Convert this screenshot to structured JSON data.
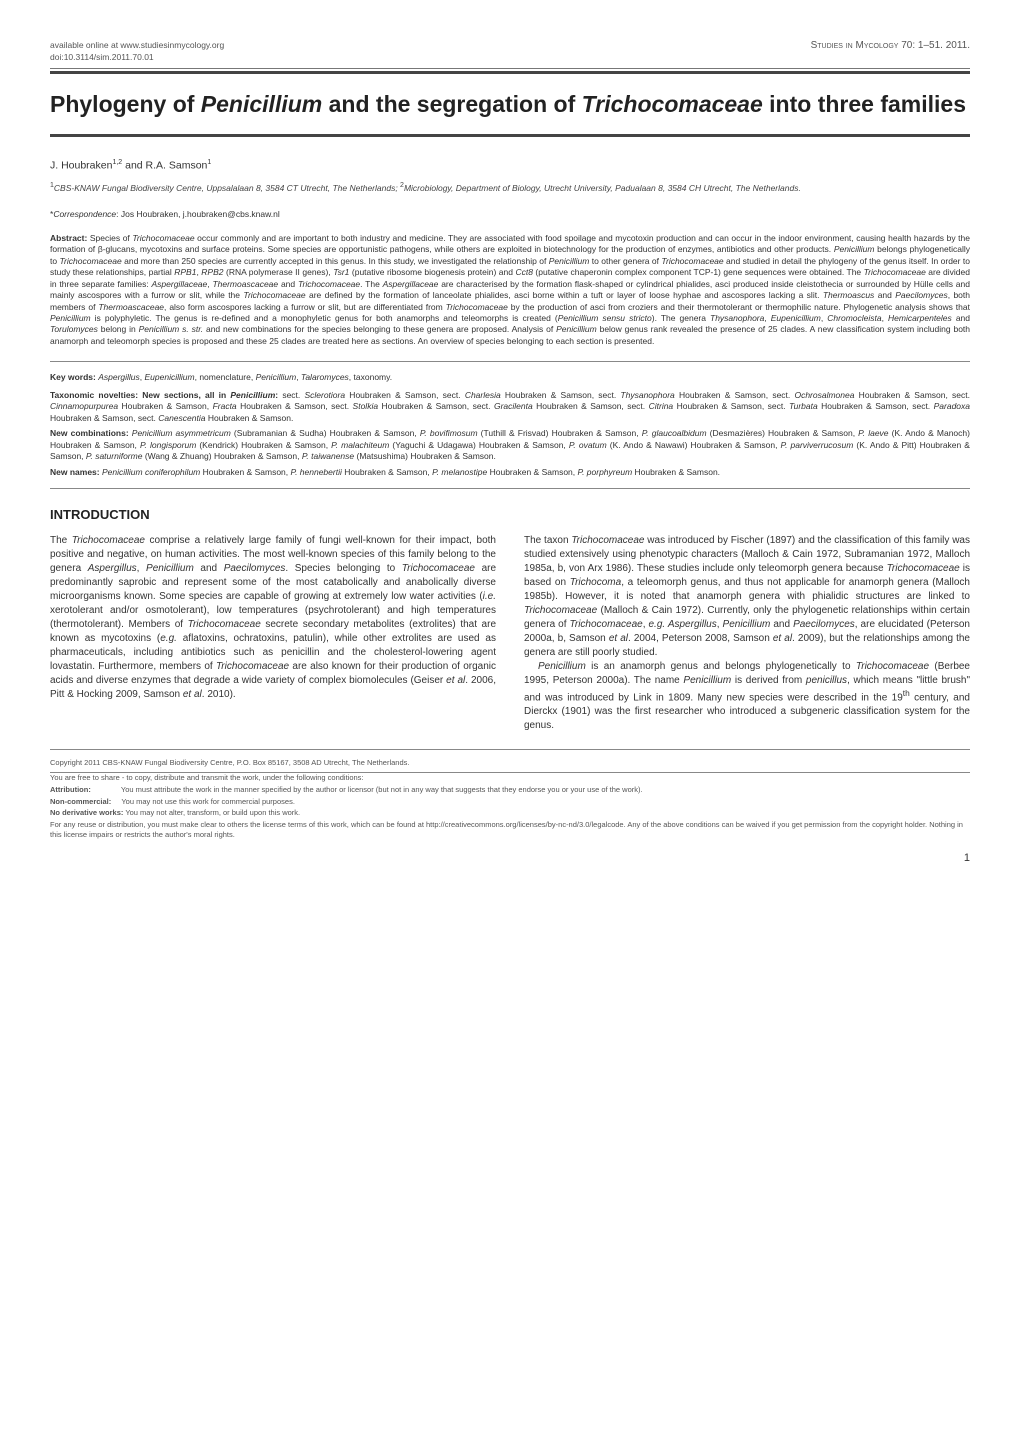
{
  "header": {
    "url": "available online at www.studiesinmycology.org",
    "doi": "doi:10.3114/sim.2011.70.01",
    "journal": "Studies in Mycology 70: 1–51. 2011."
  },
  "title_html": "Phylogeny of <em>Penicillium</em> and the segregation of <em>Trichocomaceae</em> into three families",
  "authors_html": "J. Houbraken<sup>1,2</sup> and R.A. Samson<sup>1</sup>",
  "affiliation_html": "<sup>1</sup>CBS-KNAW Fungal Biodiversity Centre, Uppsalalaan 8, 3584 CT Utrecht, The Netherlands; <sup>2</sup>Microbiology, Department of Biology, Utrecht University, Padualaan 8, 3584 CH Utrecht, The Netherlands.",
  "correspondence_html": "*<em>Correspondence</em>: Jos Houbraken, j.houbraken@cbs.knaw.nl",
  "abstract_label": "Abstract:",
  "abstract_html": "Species of <em>Trichocomaceae</em> occur commonly and are important to both industry and medicine. They are associated with food spoilage and mycotoxin production and can occur in the indoor environment, causing health hazards by the formation of β-glucans, mycotoxins and surface proteins. Some species are opportunistic pathogens, while others are exploited in biotechnology for the production of enzymes, antibiotics and other products. <em>Penicillium</em> belongs phylogenetically to <em>Trichocomaceae</em> and more than 250 species are currently accepted in this genus. In this study, we investigated the relationship of <em>Penicillium</em> to other genera of <em>Trichocomaceae</em> and studied in detail the phylogeny of the genus itself. In order to study these relationships, partial <em>RPB1</em>, <em>RPB2</em> (RNA polymerase II genes), <em>Tsr1</em> (putative ribosome biogenesis protein) and <em>Cct8</em> (putative chaperonin complex component TCP-1) gene sequences were obtained. The <em>Trichocomaceae</em> are divided in three separate families: <em>Aspergillaceae</em>, <em>Thermoascaceae</em> and <em>Trichocomaceae</em>. The <em>Aspergillaceae</em> are characterised by the formation flask-shaped or cylindrical phialides, asci produced inside cleistothecia or surrounded by Hülle cells and mainly ascospores with a furrow or slit, while the <em>Trichocomaceae</em> are defined by the formation of lanceolate phialides, asci borne within a tuft or layer of loose hyphae and ascospores lacking a slit. <em>Thermoascus</em> and <em>Paecilomyces</em>, both members of <em>Thermoascaceae</em>, also form ascospores lacking a furrow or slit, but are differentiated from <em>Trichocomaceae</em> by the production of asci from croziers and their thermotolerant or thermophilic nature. Phylogenetic analysis shows that <em>Penicillium</em> is polyphyletic. The genus is re-defined and a monophyletic genus for both anamorphs and teleomorphs is created (<em>Penicillium sensu stricto</em>). The genera <em>Thysanophora</em>, <em>Eupenicillium</em>, <em>Chromocleista</em>, <em>Hemicarpenteles</em> and <em>Torulomyces</em> belong in <em>Penicillium s. str.</em> and new combinations for the species belonging to these genera are proposed. Analysis of <em>Penicillium</em> below genus rank revealed the presence of 25 clades. A new classification system including both anamorph and teleomorph species is proposed and these 25 clades are treated here as sections. An overview of species belonging to each section is presented.",
  "keywords_label": "Key words:",
  "keywords_html": "<em>Aspergillus</em>, <em>Eupenicillium</em>, nomenclature, <em>Penicillium</em>, <em>Talaromyces</em>, taxonomy.",
  "novelties_label": "Taxonomic novelties: New sections, all in <em>Penicillium</em>:",
  "novelties_html": "sect. <em>Sclerotiora</em> Houbraken & Samson, sect. <em>Charlesia</em> Houbraken & Samson, sect. <em>Thysanophora</em> Houbraken & Samson, sect. <em>Ochrosalmonea</em> Houbraken & Samson, sect. <em>Cinnamopurpurea</em> Houbraken & Samson, <em>Fracta</em> Houbraken & Samson, sect. <em>Stolkia</em> Houbraken & Samson, sect. <em>Gracilenta</em> Houbraken & Samson, sect. <em>Citrina</em> Houbraken & Samson, sect. <em>Turbata</em> Houbraken & Samson, sect. <em>Paradoxa</em> Houbraken & Samson, sect. <em>Canescentia</em> Houbraken & Samson.",
  "new_comb_label": "New combinations:",
  "new_comb_html": "<em>Penicillium asymmetricum</em> (Subramanian & Sudha) Houbraken & Samson, <em>P. bovifimosum</em> (Tuthill & Frisvad) Houbraken & Samson, <em>P. glaucoalbidum</em> (Desmazières) Houbraken & Samson, <em>P. laeve</em> (K. Ando & Manoch) Houbraken & Samson, <em>P. longisporum</em> (Kendrick) Houbraken & Samson, <em>P. malachiteum</em> (Yaguchi & Udagawa) Houbraken & Samson, <em>P. ovatum</em> (K. Ando & Nawawi) Houbraken & Samson, <em>P. parviverrucosum</em> (K. Ando & Pitt) Houbraken & Samson, <em>P. saturniforme</em> (Wang & Zhuang) Houbraken & Samson, <em>P. taiwanense</em> (Matsushima) Houbraken & Samson.",
  "new_names_label": "New names:",
  "new_names_html": "<em>Penicillium coniferophilum</em> Houbraken & Samson, <em>P. hennebertii</em> Houbraken & Samson, <em>P. melanostipe</em> Houbraken & Samson, <em>P. porphyreum</em> Houbraken & Samson.",
  "intro_heading": "INTRODUCTION",
  "col1_p1_html": "The <em>Trichocomaceae</em> comprise a relatively large family of fungi well-known for their impact, both positive and negative, on human activities. The most well-known species of this family belong to the genera <em>Aspergillus</em>, <em>Penicillium</em> and <em>Paecilomyces</em>. Species belonging to <em>Trichocomaceae</em> are predominantly saprobic and represent some of the most catabolically and anabolically diverse microorganisms known. Some species are capable of growing at extremely low water activities (<em>i.e.</em> xerotolerant and/or osmotolerant), low temperatures (psychrotolerant) and high temperatures (thermotolerant). Members of <em>Trichocomaceae</em> secrete secondary metabolites (extrolites) that are known as mycotoxins (<em>e.g.</em> aflatoxins, ochratoxins, patulin), while other extrolites are used as pharmaceuticals, including antibiotics such as penicillin and the cholesterol-lowering agent lovastatin. Furthermore, members of <em>Trichocomaceae</em> are also known for their production of organic acids and diverse enzymes that degrade a wide variety of complex biomolecules (Geiser <em>et al</em>. 2006, Pitt & Hocking 2009, Samson <em>et al</em>. 2010).",
  "col2_p1_html": "The taxon <em>Trichocomaceae</em> was introduced by Fischer (1897) and the classification of this family was studied extensively using phenotypic characters (Malloch & Cain 1972, Subramanian 1972, Malloch 1985a, b, von Arx 1986). These studies include only teleomorph genera because <em>Trichocomaceae</em> is based on <em>Trichocoma</em>, a teleomorph genus, and thus not applicable for anamorph genera (Malloch 1985b). However, it is noted that anamorph genera with phialidic structures are linked to <em>Trichocomaceae</em> (Malloch & Cain 1972). Currently, only the phylogenetic relationships within certain genera of <em>Trichocomaceae</em>, <em>e.g. Aspergillus</em>, <em>Penicillium</em> and <em>Paecilomyces</em>, are elucidated (Peterson 2000a, b, Samson <em>et al</em>. 2004, Peterson 2008, Samson <em>et al</em>. 2009), but the relationships among the genera are still poorly studied.",
  "col2_p2_html": "<em>Penicillium</em> is an anamorph genus and belongs phylogenetically to <em>Trichocomaceae</em> (Berbee 1995, Peterson 2000a). The name <em>Penicillium</em> is derived from <em>penicillus</em>, which means \"little brush\" and was introduced by Link in 1809. Many new species were described in the 19<sup>th</sup> century, and Dierckx (1901) was the first researcher who introduced a subgeneric classification system for the genus.",
  "footer": {
    "copyright": "Copyright 2011 CBS-KNAW Fungal Biodiversity Centre, P.O. Box 85167, 3508 AD Utrecht, The Netherlands.",
    "share": "You are free to share - to copy, distribute and transmit the work, under the following conditions:",
    "attribution_label": "Attribution:",
    "attribution": "You must attribute the work in the manner specified by the author or licensor (but not in any way that suggests that they endorse you or your use of the work).",
    "noncom_label": "Non-commercial:",
    "noncom": "You may not use this work for commercial purposes.",
    "noderiv_label": "No derivative works:",
    "noderiv": "You may not alter, transform, or build upon this work.",
    "reuse": "For any reuse or distribution, you must make clear to others the license terms of this work, which can be found at http://creativecommons.org/licenses/by-nc-nd/3.0/legalcode. Any of the above conditions can be waived if you get permission from the copyright holder. Nothing in this license impairs or restricts the author's moral rights."
  },
  "page_number": "1"
}
